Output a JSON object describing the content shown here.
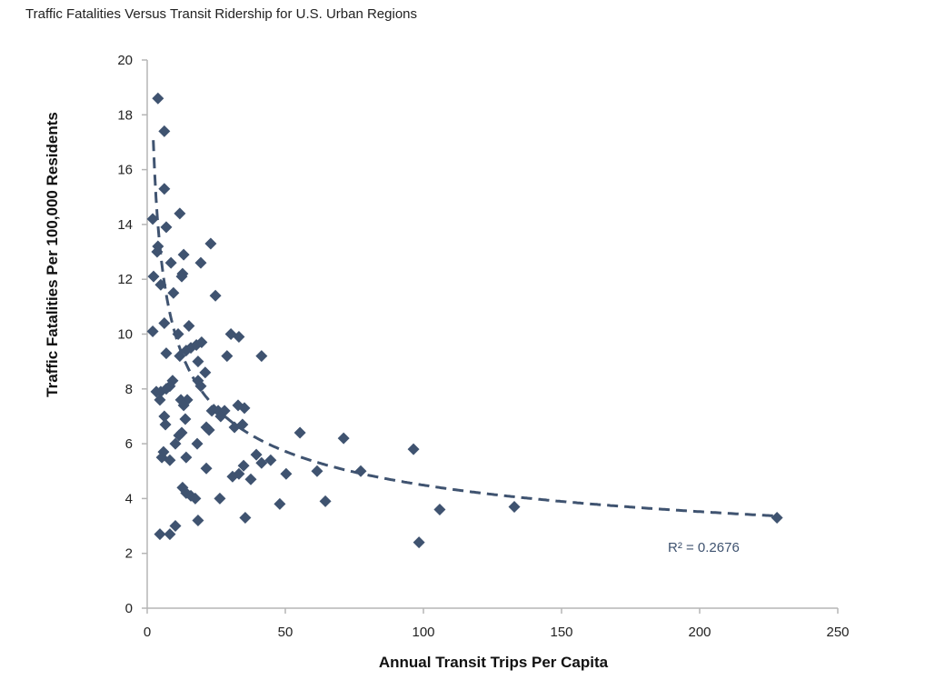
{
  "chart_data": {
    "type": "scatter",
    "title": "Traffic Fatalities Versus Transit Ridership for U.S. Urban Regions",
    "xlabel": "Annual Transit Trips Per Capita",
    "ylabel": "Traffic Fatalities Per 100,000 Residents",
    "xlim": [
      0,
      250
    ],
    "ylim": [
      0,
      20
    ],
    "xticks": [
      "0",
      "50",
      "100",
      "150",
      "200",
      "250"
    ],
    "yticks": [
      "0",
      "2",
      "4",
      "6",
      "8",
      "10",
      "12",
      "14",
      "16",
      "18",
      "20"
    ],
    "grid": false,
    "marker_color": "#3f5370",
    "points": [
      [
        3.9,
        18.6
      ],
      [
        6.2,
        17.4
      ],
      [
        6.2,
        15.3
      ],
      [
        2,
        14.2
      ],
      [
        11.8,
        14.4
      ],
      [
        3.9,
        13.2
      ],
      [
        3.6,
        13.0
      ],
      [
        6.9,
        13.9
      ],
      [
        13.2,
        12.9
      ],
      [
        23,
        13.3
      ],
      [
        8.6,
        12.6
      ],
      [
        19.4,
        12.6
      ],
      [
        2.3,
        12.1
      ],
      [
        4.9,
        11.8
      ],
      [
        12.8,
        12.2
      ],
      [
        12.5,
        12.1
      ],
      [
        24.7,
        11.4
      ],
      [
        9.5,
        11.5
      ],
      [
        2,
        10.1
      ],
      [
        6.2,
        10.4
      ],
      [
        15.1,
        10.3
      ],
      [
        11.2,
        10.0
      ],
      [
        30.3,
        10.0
      ],
      [
        33.2,
        9.9
      ],
      [
        6.9,
        9.3
      ],
      [
        15.8,
        9.5
      ],
      [
        14.1,
        9.4
      ],
      [
        17.8,
        9.6
      ],
      [
        19.7,
        9.7
      ],
      [
        41.4,
        9.2
      ],
      [
        28.9,
        9.2
      ],
      [
        11.8,
        9.2
      ],
      [
        18.4,
        9.0
      ],
      [
        21,
        8.6
      ],
      [
        18.4,
        8.3
      ],
      [
        19.4,
        8.1
      ],
      [
        9.2,
        8.3
      ],
      [
        8.2,
        8.1
      ],
      [
        4.9,
        7.9
      ],
      [
        3.3,
        7.9
      ],
      [
        6.9,
        8.0
      ],
      [
        4.6,
        7.6
      ],
      [
        12.2,
        7.6
      ],
      [
        14.5,
        7.6
      ],
      [
        13.2,
        7.4
      ],
      [
        23.4,
        7.2
      ],
      [
        25.7,
        7.2
      ],
      [
        28,
        7.2
      ],
      [
        26.6,
        7.0
      ],
      [
        32.9,
        7.4
      ],
      [
        35.2,
        7.3
      ],
      [
        21.4,
        6.6
      ],
      [
        22.4,
        6.5
      ],
      [
        31.6,
        6.6
      ],
      [
        34.5,
        6.7
      ],
      [
        6.2,
        7.0
      ],
      [
        6.6,
        6.7
      ],
      [
        13.8,
        6.9
      ],
      [
        55.3,
        6.4
      ],
      [
        71.1,
        6.2
      ],
      [
        11.5,
        6.3
      ],
      [
        12.5,
        6.4
      ],
      [
        10.2,
        6.0
      ],
      [
        18.1,
        6.0
      ],
      [
        5.9,
        5.7
      ],
      [
        5.3,
        5.5
      ],
      [
        14.1,
        5.5
      ],
      [
        39.5,
        5.6
      ],
      [
        96.4,
        5.8
      ],
      [
        41.4,
        5.3
      ],
      [
        44.7,
        5.4
      ],
      [
        8.2,
        5.4
      ],
      [
        34.9,
        5.2
      ],
      [
        21.4,
        5.1
      ],
      [
        33.2,
        4.9
      ],
      [
        30.9,
        4.8
      ],
      [
        50.3,
        4.9
      ],
      [
        61.5,
        5.0
      ],
      [
        77.3,
        5.0
      ],
      [
        37.5,
        4.7
      ],
      [
        12.8,
        4.4
      ],
      [
        14.1,
        4.2
      ],
      [
        15.8,
        4.1
      ],
      [
        17.4,
        4.0
      ],
      [
        26.3,
        4.0
      ],
      [
        48,
        3.8
      ],
      [
        64.5,
        3.9
      ],
      [
        105.9,
        3.6
      ],
      [
        132.9,
        3.7
      ],
      [
        228,
        3.3
      ],
      [
        35.5,
        3.3
      ],
      [
        18.4,
        3.2
      ],
      [
        10.2,
        3.0
      ],
      [
        4.6,
        2.7
      ],
      [
        8.2,
        2.7
      ],
      [
        98.4,
        2.4
      ]
    ],
    "trendline": {
      "type": "power",
      "a": 22.5,
      "b": -0.35,
      "style": "dashed",
      "color": "#3f5370",
      "label": "R² = 0.2676"
    }
  }
}
